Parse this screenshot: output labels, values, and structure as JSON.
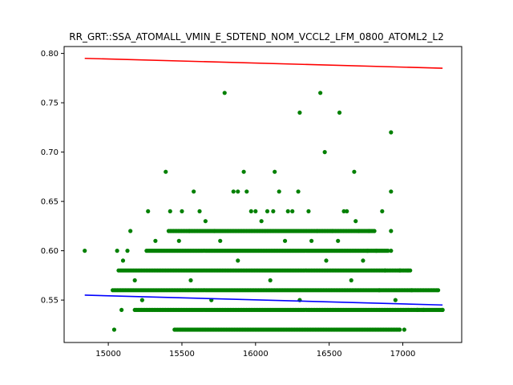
{
  "chart_data": {
    "type": "scatter",
    "title": "RR_GRT::SSA_ATOMALL_VMIN_E_SDTEND_NOM_VCCL2_LFM_0800_ATOML2_L2",
    "xlabel": "",
    "ylabel": "",
    "xlim": [
      14700,
      17400
    ],
    "ylim": [
      0.507,
      0.807
    ],
    "x_ticks": [
      15000,
      15500,
      16000,
      16500,
      17000
    ],
    "x_tick_labels": [
      "15000",
      "15500",
      "16000",
      "16500",
      "17000"
    ],
    "y_ticks": [
      0.55,
      0.6,
      0.65,
      0.7,
      0.75,
      0.8
    ],
    "y_tick_labels": [
      "0.55",
      "0.60",
      "0.65",
      "0.70",
      "0.75",
      "0.80"
    ],
    "grid": false,
    "colors": {
      "points": "#008000",
      "upper_line": "#ff0000",
      "lower_line": "#0000ff"
    },
    "lines": [
      {
        "x": [
          14840,
          17270
        ],
        "y": [
          0.795,
          0.785
        ]
      },
      {
        "x": [
          14840,
          17270
        ],
        "y": [
          0.555,
          0.545
        ]
      }
    ],
    "bands": [
      {
        "y": 0.52,
        "x_start": 15450,
        "x_end": 16980
      },
      {
        "y": 0.54,
        "x_start": 15180,
        "x_end": 17270
      },
      {
        "y": 0.56,
        "x_start": 15030,
        "x_end": 17230
      },
      {
        "y": 0.58,
        "x_start": 15070,
        "x_end": 17050
      },
      {
        "y": 0.6,
        "x_start": 15260,
        "x_end": 16900
      },
      {
        "y": 0.62,
        "x_start": 15410,
        "x_end": 16810
      }
    ],
    "points": [
      [
        14840,
        0.6
      ],
      [
        15060,
        0.6
      ],
      [
        15100,
        0.59
      ],
      [
        15130,
        0.6
      ],
      [
        15150,
        0.62
      ],
      [
        15090,
        0.54
      ],
      [
        15040,
        0.52
      ],
      [
        15270,
        0.64
      ],
      [
        15390,
        0.68
      ],
      [
        15420,
        0.64
      ],
      [
        15500,
        0.64
      ],
      [
        15550,
        0.62
      ],
      [
        15580,
        0.66
      ],
      [
        15620,
        0.64
      ],
      [
        15720,
        0.62
      ],
      [
        15790,
        0.76
      ],
      [
        15850,
        0.66
      ],
      [
        15880,
        0.66
      ],
      [
        15920,
        0.68
      ],
      [
        15940,
        0.66
      ],
      [
        15970,
        0.64
      ],
      [
        16000,
        0.64
      ],
      [
        16080,
        0.64
      ],
      [
        16120,
        0.64
      ],
      [
        16130,
        0.68
      ],
      [
        16160,
        0.66
      ],
      [
        16220,
        0.64
      ],
      [
        16250,
        0.64
      ],
      [
        16290,
        0.66
      ],
      [
        16300,
        0.74
      ],
      [
        16360,
        0.64
      ],
      [
        16420,
        0.62
      ],
      [
        16440,
        0.76
      ],
      [
        16470,
        0.7
      ],
      [
        16520,
        0.62
      ],
      [
        16570,
        0.74
      ],
      [
        16600,
        0.64
      ],
      [
        16620,
        0.64
      ],
      [
        16670,
        0.68
      ],
      [
        16700,
        0.62
      ],
      [
        16770,
        0.62
      ],
      [
        16860,
        0.64
      ],
      [
        16920,
        0.72
      ],
      [
        16920,
        0.66
      ],
      [
        16920,
        0.62
      ],
      [
        16920,
        0.6
      ],
      [
        16980,
        0.58
      ],
      [
        17060,
        0.56
      ],
      [
        17100,
        0.54
      ],
      [
        17140,
        0.54
      ],
      [
        17240,
        0.56
      ],
      [
        17270,
        0.54
      ],
      [
        16950,
        0.55
      ],
      [
        17010,
        0.52
      ],
      [
        16820,
        0.6
      ],
      [
        16880,
        0.58
      ],
      [
        16760,
        0.6
      ],
      [
        15180,
        0.57
      ],
      [
        15230,
        0.55
      ],
      [
        15320,
        0.61
      ],
      [
        15480,
        0.61
      ],
      [
        15660,
        0.63
      ],
      [
        15760,
        0.61
      ],
      [
        16040,
        0.63
      ],
      [
        16200,
        0.61
      ],
      [
        16380,
        0.61
      ],
      [
        16560,
        0.61
      ],
      [
        16680,
        0.63
      ],
      [
        16730,
        0.59
      ],
      [
        15560,
        0.57
      ],
      [
        15700,
        0.55
      ],
      [
        15880,
        0.59
      ],
      [
        16100,
        0.57
      ],
      [
        16300,
        0.55
      ],
      [
        16480,
        0.59
      ],
      [
        16650,
        0.57
      ],
      [
        16840,
        0.56
      ]
    ]
  }
}
